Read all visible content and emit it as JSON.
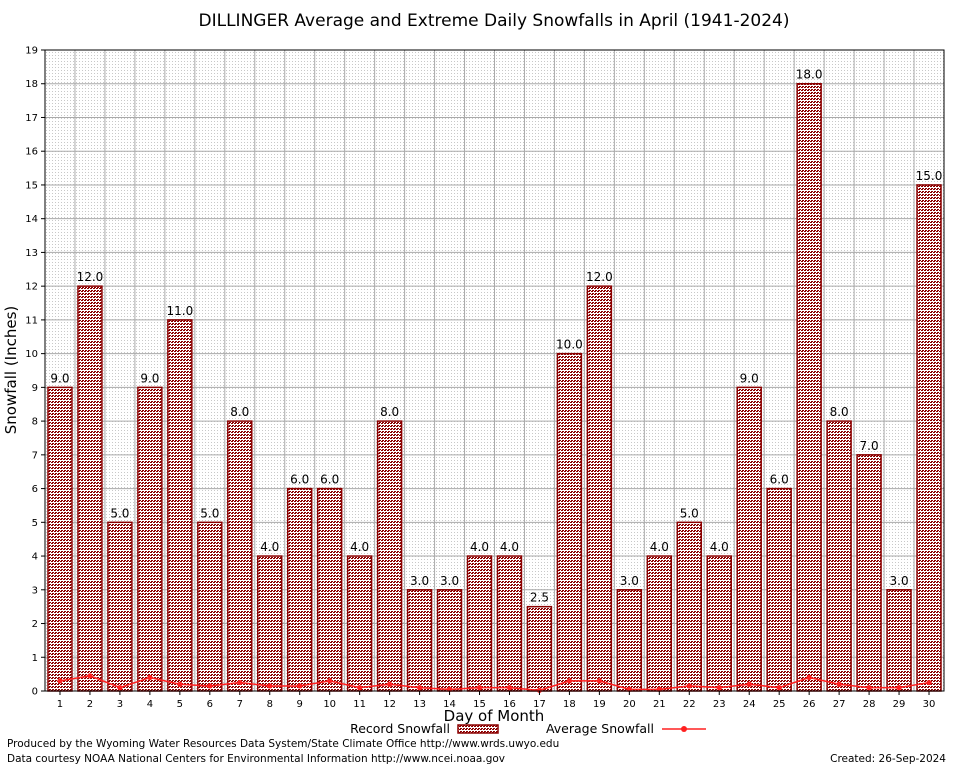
{
  "chart_data": {
    "type": "bar",
    "title": "DILLINGER Average and Extreme Daily Snowfalls in April (1941-2024)",
    "xlabel": "Day of Month",
    "ylabel": "Snowfall (Inches)",
    "ylim": [
      0,
      19
    ],
    "yticks": [
      "0",
      "1",
      "2",
      "3",
      "4",
      "5",
      "6",
      "7",
      "8",
      "9",
      "10",
      "11",
      "12",
      "13",
      "14",
      "15",
      "16",
      "17",
      "18",
      "19"
    ],
    "categories": [
      "1",
      "2",
      "3",
      "4",
      "5",
      "6",
      "7",
      "8",
      "9",
      "10",
      "11",
      "12",
      "13",
      "14",
      "15",
      "16",
      "17",
      "18",
      "19",
      "20",
      "21",
      "22",
      "23",
      "24",
      "25",
      "26",
      "27",
      "28",
      "29",
      "30"
    ],
    "series": [
      {
        "name": "Record Snowfall",
        "kind": "bar",
        "color": "#8b0000",
        "values": [
          9.0,
          12.0,
          5.0,
          9.0,
          11.0,
          5.0,
          8.0,
          4.0,
          6.0,
          6.0,
          4.0,
          8.0,
          3.0,
          3.0,
          4.0,
          4.0,
          2.5,
          10.0,
          12.0,
          3.0,
          4.0,
          5.0,
          4.0,
          9.0,
          6.0,
          18.0,
          8.0,
          7.0,
          3.0,
          15.0
        ],
        "labels": [
          "9.0",
          "12.0",
          "5.0",
          "9.0",
          "11.0",
          "5.0",
          "8.0",
          "4.0",
          "6.0",
          "6.0",
          "4.0",
          "8.0",
          "3.0",
          "3.0",
          "4.0",
          "4.0",
          "2.5",
          "10.0",
          "12.0",
          "3.0",
          "4.0",
          "5.0",
          "4.0",
          "9.0",
          "6.0",
          "18.0",
          "8.0",
          "7.0",
          "3.0",
          "15.0"
        ]
      },
      {
        "name": "Average Snowfall",
        "kind": "line",
        "color": "#ff2020",
        "values": [
          0.3,
          0.45,
          0.1,
          0.4,
          0.2,
          0.15,
          0.25,
          0.15,
          0.15,
          0.3,
          0.1,
          0.2,
          0.1,
          0.05,
          0.1,
          0.1,
          0.02,
          0.3,
          0.3,
          0.05,
          0.05,
          0.15,
          0.1,
          0.2,
          0.1,
          0.4,
          0.2,
          0.1,
          0.1,
          0.25
        ]
      }
    ],
    "grid": true,
    "legend_position": "bottom"
  },
  "footer": {
    "produced_by": "Produced by the Wyoming Water Resources Data System/State Climate Office http://www.wrds.uwyo.edu",
    "courtesy": "Data courtesy NOAA National Centers for Environmental Information http://www.ncei.noaa.gov",
    "created": "Created:  26-Sep-2024"
  }
}
